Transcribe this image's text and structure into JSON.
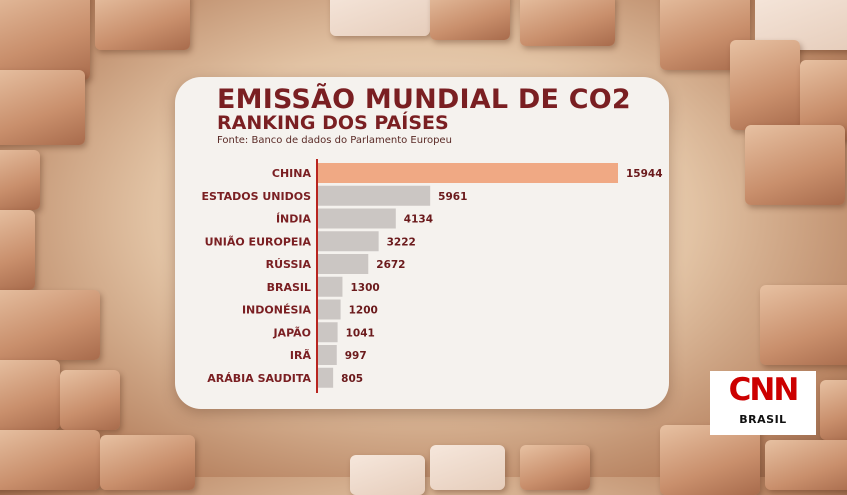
{
  "header": {
    "title": "EMISSÃO MUNDIAL DE CO2",
    "subtitle": "RANKING DOS PAÍSES",
    "source": "Fonte: Banco de dados do Parlamento Europeu"
  },
  "colors": {
    "highlight_bar": "#f0a984",
    "bar": "#cbc6c3",
    "axis": "#b8251f",
    "text": "#7a1f22"
  },
  "chart_data": {
    "type": "bar",
    "orientation": "horizontal",
    "title": "EMISSÃO MUNDIAL DE CO2",
    "subtitle": "RANKING DOS PAÍSES",
    "categories": [
      "CHINA",
      "ESTADOS UNIDOS",
      "ÍNDIA",
      "UNIÃO EUROPEIA",
      "RÚSSIA",
      "BRASIL",
      "INDONÉSIA",
      "JAPÃO",
      "IRÃ",
      "ARÁBIA SAUDITA"
    ],
    "values": [
      15944,
      5961,
      4134,
      3222,
      2672,
      1300,
      1200,
      1041,
      997,
      805
    ],
    "value_labels": [
      "15944",
      "5961",
      "4134",
      "3222",
      "2672",
      "1300",
      "1200",
      "1041",
      "997",
      "805"
    ],
    "highlight_index": 0,
    "xlim": [
      0,
      15944
    ],
    "grid": false,
    "legend": "none"
  },
  "brand": {
    "logo_main": "CNN",
    "logo_sub": "BRASIL"
  }
}
